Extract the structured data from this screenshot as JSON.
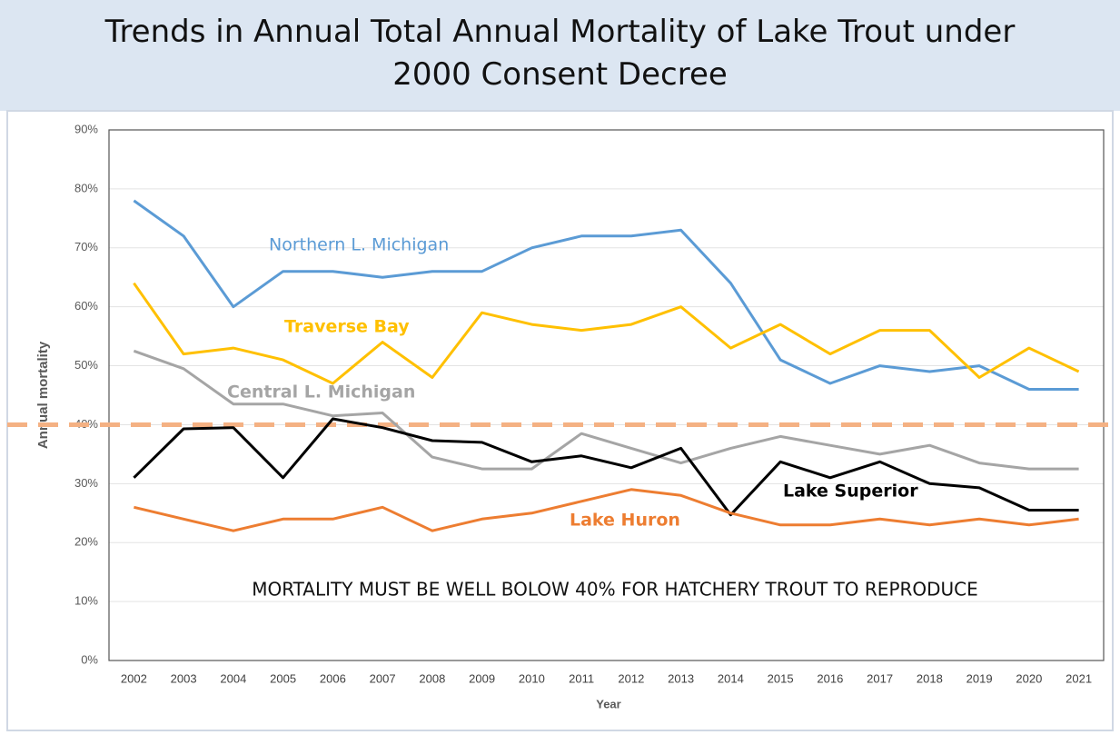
{
  "chart_data": {
    "type": "line",
    "title": "Trends in Annual Total Annual Mortality of Lake Trout under 2000 Consent Decree",
    "x_label": "Year",
    "y_label": "Annual mortality",
    "annotation": "MORTALITY MUST BE WELL BOLOW 40% FOR HATCHERY TROUT TO REPRODUCE",
    "categories": [
      "2002",
      "2003",
      "2004",
      "2005",
      "2006",
      "2007",
      "2008",
      "2009",
      "2010",
      "2011",
      "2012",
      "2013",
      "2014",
      "2015",
      "2016",
      "2017",
      "2018",
      "2019",
      "2020",
      "2021"
    ],
    "ylim": [
      0,
      90
    ],
    "yticks": [
      {
        "value": 0,
        "label": "0%"
      },
      {
        "value": 10,
        "label": "10%"
      },
      {
        "value": 20,
        "label": "20%"
      },
      {
        "value": 30,
        "label": "30%"
      },
      {
        "value": 40,
        "label": "40%"
      },
      {
        "value": 50,
        "label": "50%"
      },
      {
        "value": 60,
        "label": "60%"
      },
      {
        "value": 70,
        "label": "70%"
      },
      {
        "value": 80,
        "label": "80%"
      },
      {
        "value": 90,
        "label": "90%"
      }
    ],
    "grid": true,
    "reference_line": {
      "value": 40,
      "color": "#f4b183"
    },
    "series": [
      {
        "name": "Northern L. Michigan",
        "color": "#5b9bd5",
        "values": [
          78,
          72,
          60,
          66,
          66,
          65,
          66,
          66,
          70,
          72,
          72,
          73,
          64,
          51,
          47,
          50,
          49,
          50,
          46,
          46
        ]
      },
      {
        "name": "Traverse Bay",
        "color": "#ffc000",
        "values": [
          64,
          52,
          53,
          51,
          47,
          54,
          48,
          59,
          57,
          56,
          57,
          60,
          53,
          57,
          52,
          56,
          56,
          48,
          53,
          49
        ]
      },
      {
        "name": "Central L. Michigan",
        "color": "#a5a5a5",
        "values": [
          52.5,
          49.5,
          43.5,
          43.5,
          41.5,
          42,
          34.5,
          32.5,
          32.5,
          38.5,
          36,
          33.5,
          36,
          38,
          36.5,
          35,
          36.5,
          33.5,
          32.5,
          32.5
        ]
      },
      {
        "name": "Lake Superior",
        "color": "#000000",
        "values": [
          31,
          39.3,
          39.5,
          31,
          41,
          39.5,
          37.3,
          37,
          33.7,
          34.7,
          32.7,
          36,
          24.7,
          33.7,
          31,
          33.7,
          30,
          29.3,
          25.5,
          25.5
        ]
      },
      {
        "name": "Lake Huron",
        "color": "#ed7d31",
        "values": [
          26,
          24,
          22,
          24,
          24,
          26,
          22,
          24,
          25,
          27,
          29,
          28,
          25,
          23,
          23,
          24,
          23,
          24,
          23,
          24
        ]
      }
    ]
  }
}
